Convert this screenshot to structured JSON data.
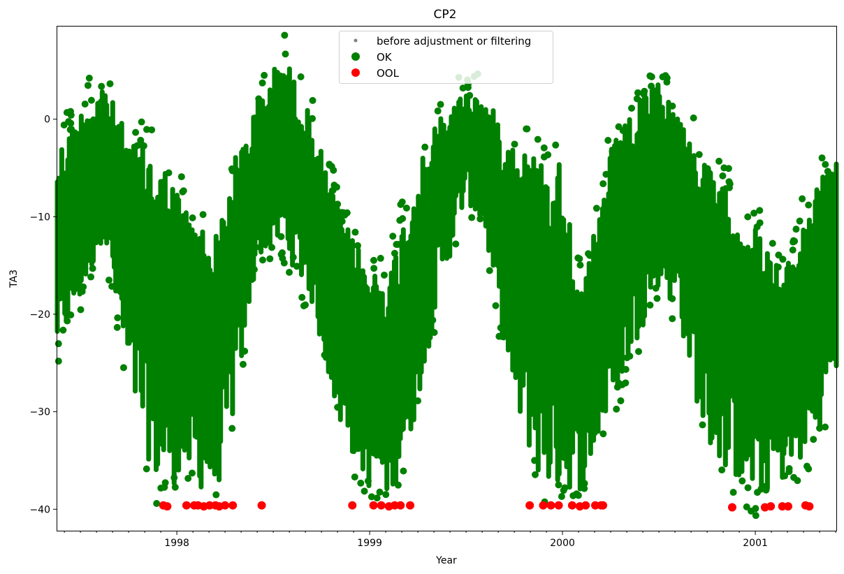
{
  "chart_data": {
    "type": "scatter",
    "title": "CP2",
    "xlabel": "Year",
    "ylabel": "TA3",
    "xlim": [
      1997.38,
      2001.42
    ],
    "ylim": [
      -42.2,
      9.5
    ],
    "x_ticks": [
      {
        "value": 1998,
        "label": "1998"
      },
      {
        "value": 1999,
        "label": "1999"
      },
      {
        "value": 2000,
        "label": "2000"
      },
      {
        "value": 2001,
        "label": "2001"
      }
    ],
    "y_ticks": [
      {
        "value": 0,
        "label": "0"
      },
      {
        "value": -10,
        "label": "−10"
      },
      {
        "value": -20,
        "label": "−20"
      },
      {
        "value": -30,
        "label": "−30"
      },
      {
        "value": -40,
        "label": "−40"
      }
    ],
    "grid": false,
    "legend_position": "top-center",
    "legend": [
      {
        "label": "before adjustment or filtering",
        "color": "#808080",
        "marker": "small-dot"
      },
      {
        "label": "OK",
        "color": "#008000",
        "marker": "dot"
      },
      {
        "label": "OOL",
        "color": "#ff0000",
        "marker": "dot"
      }
    ],
    "series": [
      {
        "name": "OK",
        "color": "#008000",
        "envelope_x": [
          1997.38,
          1997.5,
          1997.62,
          1997.75,
          1997.9,
          1998.05,
          1998.2,
          1998.3,
          1998.42,
          1998.55,
          1998.7,
          1998.85,
          1999.0,
          1999.1,
          1999.2,
          1999.35,
          1999.5,
          1999.6,
          1999.75,
          1999.9,
          2000.0,
          2000.1,
          2000.25,
          2000.4,
          2000.5,
          2000.6,
          2000.75,
          2000.9,
          2001.0,
          2001.15,
          2001.3,
          2001.42
        ],
        "upper": [
          -3,
          1,
          4,
          -2,
          -3,
          -9,
          -12,
          -4,
          2,
          7,
          0,
          -10,
          -15,
          -16,
          -8,
          0,
          3,
          2,
          -2,
          -4,
          -4,
          -18,
          -3,
          2,
          4,
          1,
          -5,
          -8,
          -11,
          -16,
          -7,
          -4
        ],
        "lower": [
          -24,
          -19,
          -12,
          -28,
          -38,
          -37,
          -39,
          -30,
          -14,
          -13,
          -19,
          -32,
          -38,
          -39,
          -34,
          -19,
          -8,
          -12,
          -30,
          -38,
          -38,
          -38,
          -30,
          -22,
          -17,
          -20,
          -34,
          -37,
          -39,
          -37,
          -34,
          -26
        ]
      },
      {
        "name": "OOL",
        "color": "#ff0000",
        "x": [
          1997.93,
          1997.95,
          1998.05,
          1998.09,
          1998.11,
          1998.14,
          1998.17,
          1998.2,
          1998.22,
          1998.25,
          1998.29,
          1998.44,
          1998.91,
          1999.02,
          1999.06,
          1999.1,
          1999.13,
          1999.16,
          1999.21,
          1999.83,
          1999.9,
          1999.94,
          1999.98,
          2000.05,
          2000.09,
          2000.12,
          2000.17,
          2000.2,
          2000.21,
          2000.88,
          2001.05,
          2001.08,
          2001.14,
          2001.17,
          2001.26,
          2001.28
        ],
        "y": [
          -39.6,
          -39.7,
          -39.6,
          -39.6,
          -39.6,
          -39.7,
          -39.6,
          -39.6,
          -39.7,
          -39.6,
          -39.6,
          -39.6,
          -39.6,
          -39.6,
          -39.6,
          -39.7,
          -39.6,
          -39.6,
          -39.6,
          -39.6,
          -39.6,
          -39.6,
          -39.6,
          -39.6,
          -39.7,
          -39.6,
          -39.6,
          -39.6,
          -39.6,
          -39.8,
          -39.8,
          -39.7,
          -39.7,
          -39.7,
          -39.6,
          -39.7
        ]
      }
    ]
  }
}
